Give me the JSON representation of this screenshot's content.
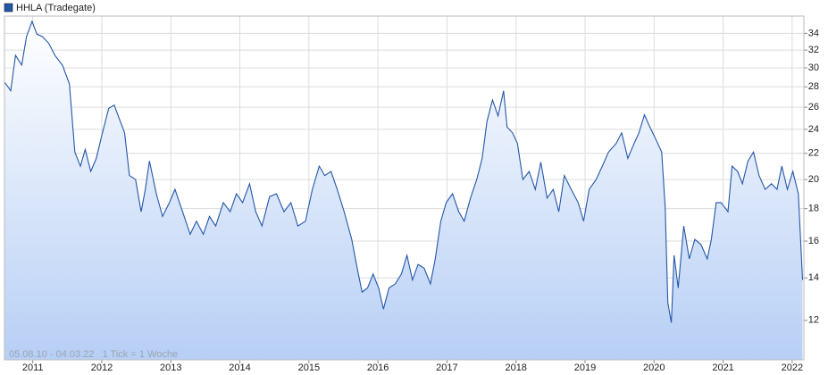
{
  "chart_data": {
    "type": "line",
    "note": "05.08.10 - 04.03.22   1 Tick = 1 Woche",
    "x": [
      2010.59,
      2010.68,
      2010.75,
      2010.84,
      2010.91,
      2010.99,
      2011.06,
      2011.14,
      2011.23,
      2011.32,
      2011.43,
      2011.53,
      2011.61,
      2011.69,
      2011.76,
      2011.84,
      2011.92,
      2012.01,
      2012.1,
      2012.18,
      2012.25,
      2012.33,
      2012.4,
      2012.49,
      2012.57,
      2012.63,
      2012.69,
      2012.79,
      2012.88,
      2012.98,
      2013.06,
      2013.17,
      2013.28,
      2013.37,
      2013.47,
      2013.56,
      2013.65,
      2013.76,
      2013.86,
      2013.95,
      2014.04,
      2014.14,
      2014.23,
      2014.32,
      2014.43,
      2014.53,
      2014.64,
      2014.74,
      2014.84,
      2014.95,
      2015.05,
      2015.15,
      2015.23,
      2015.32,
      2015.41,
      2015.51,
      2015.62,
      2015.7,
      2015.77,
      2015.85,
      2015.93,
      2016.01,
      2016.08,
      2016.16,
      2016.25,
      2016.34,
      2016.42,
      2016.5,
      2016.58,
      2016.67,
      2016.76,
      2016.83,
      2016.91,
      2016.99,
      2017.08,
      2017.17,
      2017.25,
      2017.34,
      2017.43,
      2017.51,
      2017.58,
      2017.66,
      2017.74,
      2017.82,
      2017.87,
      2017.95,
      2018.02,
      2018.1,
      2018.19,
      2018.28,
      2018.36,
      2018.45,
      2018.54,
      2018.62,
      2018.7,
      2018.8,
      2018.9,
      2018.98,
      2019.06,
      2019.16,
      2019.25,
      2019.34,
      2019.45,
      2019.53,
      2019.62,
      2019.71,
      2019.78,
      2019.86,
      2019.94,
      2020.03,
      2020.11,
      2020.16,
      2020.2,
      2020.25,
      2020.29,
      2020.35,
      2020.43,
      2020.51,
      2020.59,
      2020.68,
      2020.77,
      2020.83,
      2020.9,
      2020.97,
      2021.07,
      2021.13,
      2021.21,
      2021.28,
      2021.36,
      2021.44,
      2021.52,
      2021.61,
      2021.7,
      2021.78,
      2021.85,
      2021.93,
      2022.01,
      2022.09,
      2022.15
    ],
    "series": [
      {
        "name": "HHLA (Tradegate)",
        "color": "#2457a8",
        "values": [
          28.5,
          27.6,
          31.4,
          30.3,
          33.6,
          35.5,
          33.9,
          33.6,
          32.8,
          31.4,
          30.3,
          28.3,
          22.1,
          21.0,
          22.3,
          20.6,
          21.6,
          23.7,
          25.9,
          26.2,
          25.0,
          23.7,
          20.3,
          20.0,
          17.8,
          19.3,
          21.4,
          19.0,
          17.5,
          18.4,
          19.3,
          17.8,
          16.4,
          17.2,
          16.4,
          17.5,
          16.9,
          18.4,
          17.8,
          19.0,
          18.4,
          19.7,
          17.8,
          16.9,
          18.8,
          19.0,
          17.8,
          18.4,
          16.9,
          17.2,
          19.3,
          21.0,
          20.3,
          20.6,
          19.3,
          17.8,
          16.1,
          14.5,
          13.3,
          13.5,
          14.2,
          13.5,
          12.5,
          13.5,
          13.7,
          14.2,
          15.2,
          13.9,
          14.7,
          14.5,
          13.7,
          15.0,
          17.2,
          18.4,
          19.0,
          17.8,
          17.2,
          18.7,
          20.0,
          21.6,
          24.7,
          26.7,
          25.2,
          27.6,
          24.2,
          23.7,
          22.8,
          20.0,
          20.6,
          19.3,
          21.3,
          18.7,
          19.3,
          17.8,
          20.3,
          19.3,
          18.4,
          17.2,
          19.3,
          20.0,
          21.0,
          22.1,
          22.8,
          23.7,
          21.6,
          22.8,
          23.7,
          25.3,
          24.2,
          23.1,
          22.1,
          18.1,
          12.8,
          11.9,
          15.2,
          13.5,
          16.9,
          15.0,
          16.1,
          15.8,
          15.0,
          16.1,
          18.4,
          18.4,
          17.8,
          21.0,
          20.6,
          19.7,
          21.4,
          22.1,
          20.3,
          19.3,
          19.7,
          19.3,
          21.0,
          19.3,
          20.6,
          19.0,
          13.9
        ]
      }
    ],
    "xlim": [
      2010.59,
      2022.17
    ],
    "xticks": [
      2011,
      2012,
      2013,
      2014,
      2015,
      2016,
      2017,
      2018,
      2019,
      2020,
      2021,
      2022
    ],
    "ylim": [
      10.4,
      36.2
    ],
    "yticks": [
      12,
      14,
      16,
      18,
      20,
      22,
      24,
      26,
      28,
      30,
      32,
      34
    ],
    "log_scale": "y",
    "grid": true,
    "legend": "top-left"
  }
}
